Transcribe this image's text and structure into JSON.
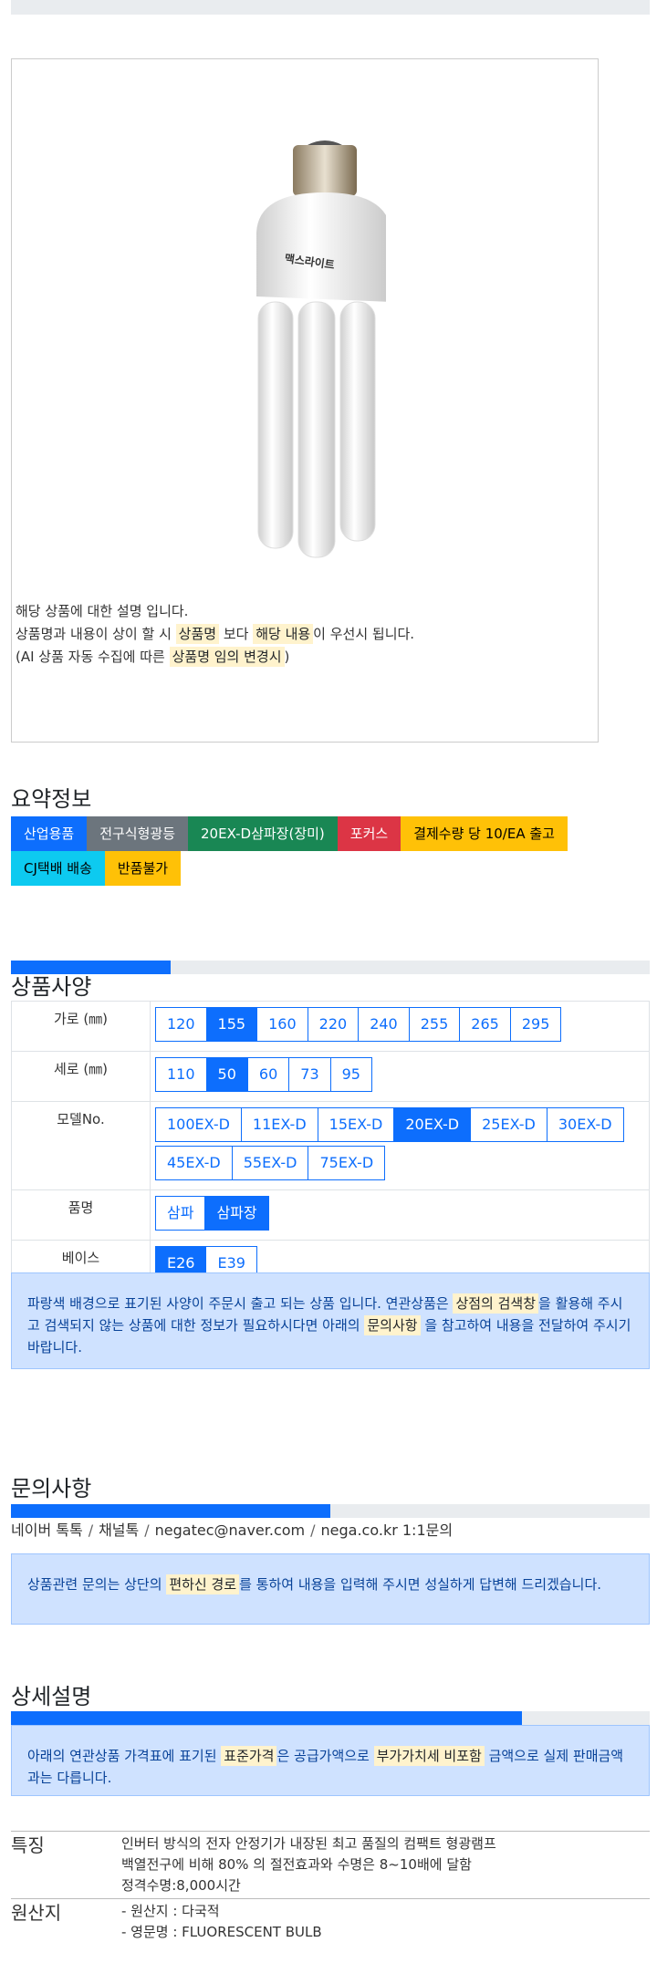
{
  "notice": {
    "line1": "해당 상품에 대한 설명 입니다.",
    "line2_a": "상품명과 내용이 상이 할 시 ",
    "line2_hl1": "상품명",
    "line2_b": " 보다 ",
    "line2_hl2": "해당 내용",
    "line2_c": "이 우선시 됩니다.",
    "line3_a": "(AI 상품 자동 수집에 따른 ",
    "line3_hl": "상품명 임의 변경시",
    "line3_b": ")"
  },
  "summary": {
    "title": "요약정보",
    "badges": [
      {
        "label": "산업용품",
        "color": "#0d6efd"
      },
      {
        "label": "전구식형광등",
        "color": "#6c757d"
      },
      {
        "label": "20EX-D삼파장(장미)",
        "color": "#198754"
      },
      {
        "label": "포커스",
        "color": "#dc3545"
      },
      {
        "label": "결제수량 당 10/EA 출고",
        "color": "#ffc107"
      },
      {
        "label": "CJ택배 배송",
        "color": "#0dcaf0"
      },
      {
        "label": "반품불가",
        "color": "#ffc107"
      }
    ]
  },
  "spec": {
    "title": "상품사양",
    "progress": 0.25,
    "rows": [
      {
        "label": "가로 (㎜)",
        "options": [
          "120",
          "155",
          "160",
          "220",
          "240",
          "255",
          "265",
          "295"
        ],
        "selected": "155"
      },
      {
        "label": "세로 (㎜)",
        "options": [
          "110",
          "50",
          "60",
          "73",
          "95"
        ],
        "selected": "50"
      },
      {
        "label": "모델No.",
        "options": [
          "100EX-D",
          "11EX-D",
          "15EX-D",
          "20EX-D",
          "25EX-D",
          "30EX-D",
          "45EX-D",
          "55EX-D",
          "75EX-D"
        ],
        "selected": "20EX-D"
      },
      {
        "label": "품명",
        "options": [
          "삼파",
          "삼파장"
        ],
        "selected": "삼파장"
      },
      {
        "label": "베이스",
        "options": [
          "E26",
          "E39"
        ],
        "selected": "E26"
      }
    ],
    "info_a": "파랑색 배경으로 표기된 사양이 주문시 출고 되는 상품 입니다. 연관상품은 ",
    "info_hl1": "상점의 검색창",
    "info_b": "을 활용해 주시고 검색되지 않는 상품에 대한 정보가 필요하시다면 아래의 ",
    "info_hl2": "문의사항",
    "info_c": " 을 참고하여 내용을 전달하여 주시기 바랍니다."
  },
  "inquiry": {
    "title": "문의사항",
    "progress": 0.5,
    "contacts": [
      "네이버 톡톡",
      "채널톡",
      "negatec@naver.com",
      "nega.co.kr 1:1문의"
    ],
    "separator": "/",
    "info_a": "상품관련 문의는 상단의 ",
    "info_hl": "편하신 경로",
    "info_b": "를 통하여 내용을 입력해 주시면 성실하게 답변해 드리겠습니다."
  },
  "detail": {
    "title": "상세설명",
    "progress": 0.8,
    "info_a": "아래의 연관상품 가격표에 표기된 ",
    "info_hl1": "표준가격",
    "info_b": "은 공급가액으로 ",
    "info_hl2": "부가가치세 비포함",
    "info_c": " 금액으로 실제 판매금액과는 다릅니다.",
    "features": [
      {
        "key": "특징",
        "lines": [
          "인버터 방식의 전자 안정기가 내장된 최고 품질의 컴팩트 형광램프",
          "백열전구에 비해 80% 의 절전효과와 수명은 8~10배에 달함",
          "정격수명:8,000시간"
        ]
      },
      {
        "key": "원산지",
        "lines": [
          "- 원산지 : 다국적",
          "- 영문명 : FLUORESCENT BULB"
        ]
      }
    ]
  },
  "product_image": {
    "brand_text": "맥스라이트"
  }
}
